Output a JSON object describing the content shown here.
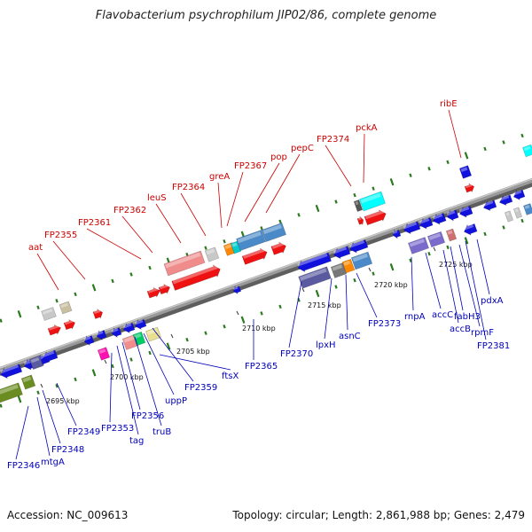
{
  "title": "Flavobacterium psychrophilum JIP02/86, complete genome",
  "footer": {
    "accession": "Accession: NC_009613",
    "summary": "Topology: circular; Length: 2,861,988 bp; Genes: 2,479"
  },
  "colors": {
    "forward_label": "#cc0000",
    "reverse_label": "#0000bb",
    "backbone": "#888888",
    "strand_dots": "#2a7a1e"
  },
  "scale_ticks": [
    {
      "label": "2695 kbp"
    },
    {
      "label": "2700 kbp"
    },
    {
      "label": "2705 kbp"
    },
    {
      "label": "2710 kbp"
    },
    {
      "label": "2715 kbp"
    },
    {
      "label": "2720 kbp"
    },
    {
      "label": "2725 kbp"
    }
  ],
  "forward_labels": [
    "aat",
    "FP2355",
    "FP2361",
    "FP2362",
    "leuS",
    "FP2364",
    "greA",
    "FP2367",
    "pop",
    "pepC",
    "FP2374",
    "pckA",
    "ribE"
  ],
  "reverse_labels": [
    "FP2346",
    "mtgA",
    "FP2348",
    "FP2349",
    "FP2353",
    "tag",
    "FP2356",
    "truB",
    "uppP",
    "FP2359",
    "ftsX",
    "FP2365",
    "FP2370",
    "lpxH",
    "asnC",
    "FP2373",
    "rnpA",
    "accC",
    "accB",
    "fabH3",
    "rpmF",
    "FP2381",
    "pdxA"
  ]
}
